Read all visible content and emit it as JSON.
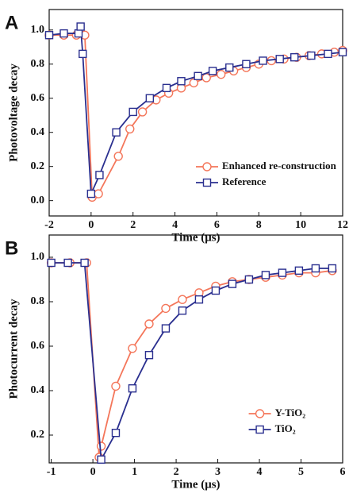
{
  "chart_data": [
    {
      "type": "line",
      "panel": "A",
      "xlabel": "Time (μs)",
      "ylabel": "Photovoltage decay",
      "xlim": [
        -2,
        12
      ],
      "xticks": [
        -2,
        0,
        2,
        4,
        6,
        8,
        10,
        12
      ],
      "ylim": [
        -0.09,
        1.12
      ],
      "yticks": [
        {
          "value": 0,
          "label": "0.0"
        },
        0.2,
        0.4,
        0.6,
        0.8,
        {
          "value": 1,
          "label": "1.0"
        }
      ],
      "legend": "lower right",
      "series": [
        {
          "name": "Enhanced re-construction",
          "color": "#f4765a",
          "marker": "circle",
          "x": [
            -2,
            -1.3,
            -0.7,
            -0.3,
            0.05,
            0.35,
            1.3,
            1.85,
            2.45,
            3.1,
            3.7,
            4.3,
            4.9,
            5.5,
            6.2,
            6.8,
            7.4,
            8,
            8.6,
            9.2,
            9.8,
            10.4,
            11,
            11.6,
            12
          ],
          "values": [
            0.97,
            0.97,
            0.97,
            0.97,
            0.02,
            0.04,
            0.26,
            0.42,
            0.52,
            0.59,
            0.63,
            0.66,
            0.69,
            0.72,
            0.74,
            0.76,
            0.78,
            0.8,
            0.82,
            0.83,
            0.84,
            0.85,
            0.86,
            0.87,
            0.88
          ]
        },
        {
          "name": "Reference",
          "color": "#2a2f8f",
          "marker": "square",
          "x": [
            -2,
            -1.3,
            -0.6,
            -0.5,
            -0.4,
            0.0,
            0.4,
            1.2,
            2.0,
            2.8,
            3.6,
            4.3,
            5.1,
            5.8,
            6.6,
            7.4,
            8.2,
            9.0,
            9.7,
            10.5,
            11.3,
            12
          ],
          "values": [
            0.97,
            0.98,
            0.98,
            1.02,
            0.86,
            0.04,
            0.15,
            0.4,
            0.52,
            0.6,
            0.66,
            0.7,
            0.73,
            0.76,
            0.78,
            0.8,
            0.82,
            0.83,
            0.84,
            0.85,
            0.86,
            0.87
          ]
        }
      ]
    },
    {
      "type": "line",
      "panel": "B",
      "xlabel": "Time (μs)",
      "ylabel": "Photocurrent decay",
      "xlim": [
        -1.05,
        6
      ],
      "xticks": [
        -1,
        0,
        1,
        2,
        3,
        4,
        5,
        6
      ],
      "ylim": [
        0.075,
        1.1
      ],
      "yticks": [
        0.2,
        0.4,
        0.6,
        0.8,
        {
          "value": 1,
          "label": "1.0"
        }
      ],
      "legend": "lower right",
      "series": [
        {
          "name": "Y-TiO₂",
          "color": "#f4765a",
          "marker": "circle",
          "x": [
            -1,
            -0.55,
            -0.15,
            0.15,
            0.2,
            0.55,
            0.95,
            1.35,
            1.75,
            2.15,
            2.55,
            2.95,
            3.35,
            3.75,
            4.15,
            4.55,
            4.95,
            5.35,
            5.75
          ],
          "values": [
            0.975,
            0.975,
            0.975,
            0.1,
            0.15,
            0.42,
            0.59,
            0.7,
            0.77,
            0.81,
            0.84,
            0.87,
            0.89,
            0.9,
            0.91,
            0.92,
            0.93,
            0.93,
            0.94
          ]
        },
        {
          "name": "TiO₂",
          "color": "#2a2f8f",
          "marker": "square",
          "x": [
            -1,
            -0.6,
            -0.2,
            0.2,
            0.55,
            0.95,
            1.35,
            1.75,
            2.15,
            2.55,
            2.95,
            3.35,
            3.75,
            4.15,
            4.55,
            4.95,
            5.35,
            5.75
          ],
          "values": [
            0.975,
            0.975,
            0.975,
            0.09,
            0.21,
            0.41,
            0.56,
            0.68,
            0.76,
            0.81,
            0.85,
            0.88,
            0.9,
            0.92,
            0.93,
            0.94,
            0.95,
            0.95
          ]
        }
      ]
    }
  ]
}
